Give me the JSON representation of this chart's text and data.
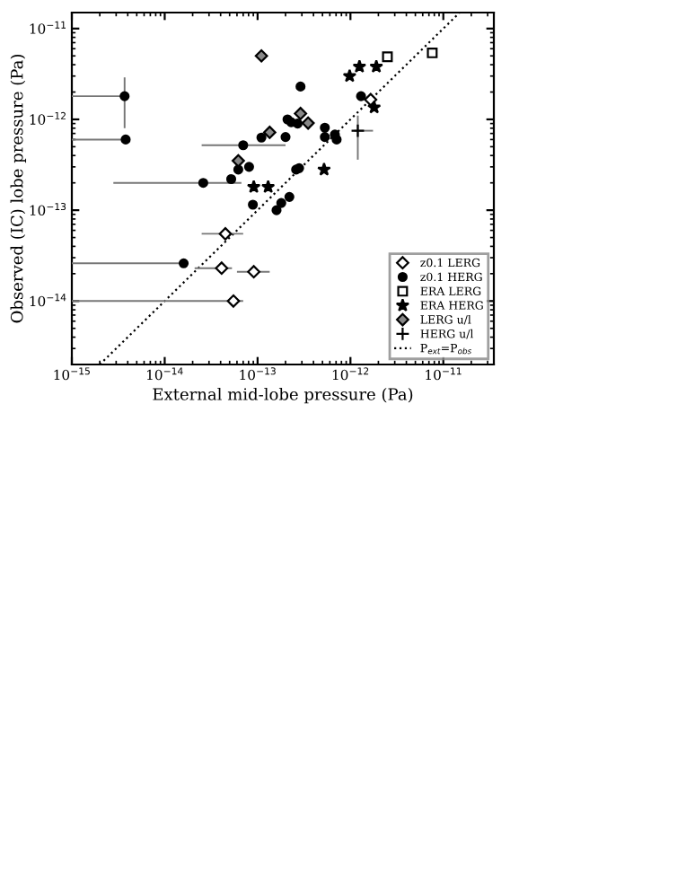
{
  "chart_data": {
    "type": "scatter",
    "xlabel": "External mid-lobe pressure (Pa)",
    "ylabel": "Observed (IC) lobe pressure (Pa)",
    "log": "xy",
    "xlim": [
      1e-15,
      3.5e-11
    ],
    "ylim": [
      2e-15,
      1.5e-11
    ],
    "xticks": [
      {
        "value": 1e-15,
        "label": "10$^{−15}$"
      },
      {
        "value": 1e-14,
        "label": "10$^{−14}$"
      },
      {
        "value": 1e-13,
        "label": "10$^{−13}$"
      },
      {
        "value": 1e-12,
        "label": "10$^{−12}$"
      },
      {
        "value": 1e-11,
        "label": "10$^{−11}$"
      }
    ],
    "yticks": [
      {
        "value": 1e-14,
        "label": "10$^{−14}$"
      },
      {
        "value": 1e-13,
        "label": "10$^{−13}$"
      },
      {
        "value": 1e-12,
        "label": "10$^{−12}$"
      },
      {
        "value": 1e-11,
        "label": "10$^{−11}$"
      }
    ],
    "legend": "bottom right",
    "grid": false,
    "series": [
      {
        "name": "z0.1 LERG",
        "marker": "diamond",
        "color": "#ffffff",
        "x": [
          4.5e-14,
          4.1e-14,
          9.1e-14,
          5.5e-14,
          1.65e-12
        ],
        "values": [
          5.5e-14,
          2.3e-14,
          2.1e-14,
          1e-14,
          1.65e-12
        ],
        "xerrors": [
          [
            2.5e-14,
            7e-14
          ],
          [
            2.1e-14,
            5.3e-14
          ],
          [
            6e-14,
            1.35e-13
          ],
          [
            1e-15,
            7e-14
          ],
          null
        ]
      },
      {
        "name": "z0.1 HERG",
        "marker": "circle",
        "color": "#000000",
        "x": [
          3.7e-15,
          3.8e-15,
          2.6e-14,
          1.6e-14,
          7e-14,
          5.2e-14,
          6.2e-14,
          8.1e-14,
          8.9e-14,
          1.1e-13,
          1.6e-13,
          1.8e-13,
          2.2e-13,
          2e-13,
          2.1e-13,
          2.3e-13,
          2.7e-13,
          2.9e-13,
          2.6e-13,
          2.8e-13,
          5.3e-13,
          5.3e-13,
          6.8e-13,
          7.1e-13,
          1.3e-12
        ],
        "values": [
          1.8e-12,
          6e-13,
          2e-13,
          2.6e-14,
          5.2e-13,
          2.2e-13,
          2.8e-13,
          3e-13,
          1.15e-13,
          6.3e-13,
          1e-13,
          1.2e-13,
          1.4e-13,
          6.4e-13,
          1e-12,
          9.3e-13,
          9e-13,
          2.3e-12,
          2.8e-13,
          2.9e-13,
          8.1e-13,
          6.4e-13,
          6.8e-13,
          6e-13,
          1.8e-12
        ],
        "xerrors": [
          [
            1e-15,
            3.7e-15
          ],
          [
            1e-15,
            3.8e-15
          ],
          [
            2.8e-15,
            6.7e-14
          ],
          [
            1e-15,
            1.6e-14
          ],
          [
            2.5e-14,
            2e-13
          ],
          null,
          null,
          null,
          null,
          null,
          null,
          null,
          null,
          null,
          null,
          null,
          null,
          null,
          null,
          null,
          null,
          null,
          null,
          null,
          null
        ],
        "errors": [
          [
            8e-13,
            2.9e-12
          ],
          null,
          null,
          null,
          null,
          null,
          null,
          null,
          null,
          null,
          null,
          null,
          null,
          null,
          null,
          null,
          null,
          null,
          null,
          null,
          null,
          null,
          null,
          null,
          null
        ]
      },
      {
        "name": "ERA LERG",
        "marker": "square",
        "color": "#ffffff",
        "x": [
          2.5e-12,
          7.6e-12
        ],
        "values": [
          4.9e-12,
          5.4e-12
        ]
      },
      {
        "name": "ERA HERG",
        "marker": "star",
        "color": "#000000",
        "x": [
          9.1e-14,
          1.3e-13,
          5.2e-13,
          9.8e-13,
          1.25e-12,
          1.9e-12,
          1.8e-12
        ],
        "values": [
          1.8e-13,
          1.8e-13,
          2.8e-13,
          3e-12,
          3.8e-12,
          3.8e-12,
          1.35e-12
        ]
      },
      {
        "name": "LERG u/l",
        "marker": "diamond",
        "color": "#888888",
        "x": [
          1.1e-13,
          2.9e-13,
          3.5e-13,
          1.35e-13,
          6.2e-14
        ],
        "values": [
          5e-12,
          1.16e-12,
          9.1e-13,
          7.2e-13,
          3.5e-13
        ]
      },
      {
        "name": "HERG u/l",
        "marker": "cross",
        "color": "#000000",
        "x": [
          1.2e-12
        ],
        "values": [
          7.5e-13
        ],
        "xerrors": [
          [
            1.1e-12,
            1.75e-12
          ]
        ],
        "errors": [
          [
            3.6e-13,
            1.1e-12
          ]
        ]
      },
      {
        "name": "P$_{ext}$=P$_{obs}$",
        "type": "line",
        "line_style": "dotted",
        "marker": "none",
        "color": "#000000",
        "x": [
          2e-15,
          1.5e-11
        ],
        "values": [
          2e-15,
          1.5e-11
        ]
      }
    ]
  }
}
